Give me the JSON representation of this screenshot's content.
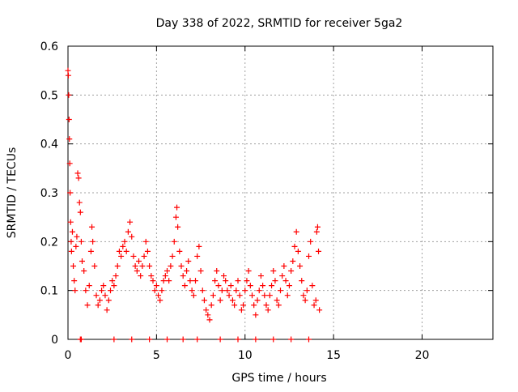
{
  "chart_data": {
    "type": "scatter",
    "title": "Day 338 of 2022, SRMTID for receiver 5ga2",
    "xlabel": "GPS time / hours",
    "ylabel": "SRMTID / TECUs",
    "xlim": [
      0,
      24
    ],
    "ylim": [
      0,
      0.6
    ],
    "x_ticks": [
      0,
      5,
      10,
      15,
      20
    ],
    "x_tick_labels": [
      "0",
      "5",
      "10",
      "15",
      "20"
    ],
    "y_ticks": [
      0,
      0.1,
      0.2,
      0.3,
      0.4,
      0.5,
      0.6
    ],
    "y_tick_labels": [
      "0",
      "0.1",
      "0.2",
      "0.3",
      "0.4",
      "0.5",
      "0.6"
    ],
    "grid": true,
    "marker": "plus",
    "marker_color": "#ff0000",
    "series": [
      {
        "name": "SRMTID",
        "points": [
          [
            0.0,
            0.55
          ],
          [
            0.02,
            0.54
          ],
          [
            0.04,
            0.5
          ],
          [
            0.06,
            0.45
          ],
          [
            0.08,
            0.41
          ],
          [
            0.1,
            0.36
          ],
          [
            0.12,
            0.3
          ],
          [
            0.15,
            0.24
          ],
          [
            0.18,
            0.2
          ],
          [
            0.2,
            0.18
          ],
          [
            0.25,
            0.22
          ],
          [
            0.3,
            0.15
          ],
          [
            0.35,
            0.12
          ],
          [
            0.4,
            0.1
          ],
          [
            0.45,
            0.19
          ],
          [
            0.5,
            0.21
          ],
          [
            0.55,
            0.34
          ],
          [
            0.6,
            0.33
          ],
          [
            0.65,
            0.28
          ],
          [
            0.7,
            0.26
          ],
          [
            0.75,
            0.2
          ],
          [
            0.8,
            0.16
          ],
          [
            0.9,
            0.14
          ],
          [
            1.0,
            0.1
          ],
          [
            1.1,
            0.07
          ],
          [
            1.2,
            0.11
          ],
          [
            1.3,
            0.18
          ],
          [
            1.35,
            0.23
          ],
          [
            1.4,
            0.2
          ],
          [
            1.5,
            0.15
          ],
          [
            1.6,
            0.09
          ],
          [
            1.7,
            0.07
          ],
          [
            1.8,
            0.08
          ],
          [
            1.9,
            0.1
          ],
          [
            2.0,
            0.11
          ],
          [
            2.1,
            0.09
          ],
          [
            2.2,
            0.06
          ],
          [
            2.3,
            0.08
          ],
          [
            2.4,
            0.1
          ],
          [
            2.5,
            0.12
          ],
          [
            2.6,
            0.11
          ],
          [
            2.7,
            0.13
          ],
          [
            2.8,
            0.15
          ],
          [
            2.9,
            0.18
          ],
          [
            3.0,
            0.17
          ],
          [
            3.1,
            0.19
          ],
          [
            3.2,
            0.2
          ],
          [
            3.3,
            0.18
          ],
          [
            3.4,
            0.22
          ],
          [
            3.5,
            0.24
          ],
          [
            3.6,
            0.21
          ],
          [
            3.7,
            0.17
          ],
          [
            3.8,
            0.15
          ],
          [
            3.9,
            0.14
          ],
          [
            4.0,
            0.16
          ],
          [
            4.1,
            0.13
          ],
          [
            4.2,
            0.15
          ],
          [
            4.3,
            0.17
          ],
          [
            4.4,
            0.2
          ],
          [
            4.5,
            0.18
          ],
          [
            4.6,
            0.15
          ],
          [
            4.7,
            0.13
          ],
          [
            4.8,
            0.12
          ],
          [
            4.9,
            0.1
          ],
          [
            5.0,
            0.11
          ],
          [
            5.1,
            0.09
          ],
          [
            5.2,
            0.08
          ],
          [
            5.3,
            0.1
          ],
          [
            5.4,
            0.12
          ],
          [
            5.5,
            0.13
          ],
          [
            5.6,
            0.14
          ],
          [
            5.7,
            0.12
          ],
          [
            5.8,
            0.15
          ],
          [
            5.9,
            0.17
          ],
          [
            6.0,
            0.2
          ],
          [
            6.1,
            0.25
          ],
          [
            6.15,
            0.27
          ],
          [
            6.2,
            0.23
          ],
          [
            6.3,
            0.18
          ],
          [
            6.4,
            0.15
          ],
          [
            6.5,
            0.13
          ],
          [
            6.6,
            0.11
          ],
          [
            6.7,
            0.14
          ],
          [
            6.8,
            0.16
          ],
          [
            6.9,
            0.12
          ],
          [
            7.0,
            0.1
          ],
          [
            7.1,
            0.09
          ],
          [
            7.2,
            0.12
          ],
          [
            7.3,
            0.17
          ],
          [
            7.4,
            0.19
          ],
          [
            7.5,
            0.14
          ],
          [
            7.6,
            0.1
          ],
          [
            7.7,
            0.08
          ],
          [
            7.8,
            0.06
          ],
          [
            7.9,
            0.05
          ],
          [
            8.0,
            0.04
          ],
          [
            8.1,
            0.07
          ],
          [
            8.2,
            0.09
          ],
          [
            8.3,
            0.12
          ],
          [
            8.4,
            0.14
          ],
          [
            8.5,
            0.11
          ],
          [
            8.6,
            0.08
          ],
          [
            8.7,
            0.1
          ],
          [
            8.8,
            0.13
          ],
          [
            8.9,
            0.12
          ],
          [
            9.0,
            0.1
          ],
          [
            9.1,
            0.09
          ],
          [
            9.2,
            0.11
          ],
          [
            9.3,
            0.08
          ],
          [
            9.4,
            0.07
          ],
          [
            9.5,
            0.1
          ],
          [
            9.6,
            0.12
          ],
          [
            9.7,
            0.09
          ],
          [
            9.8,
            0.06
          ],
          [
            9.9,
            0.07
          ],
          [
            10.0,
            0.1
          ],
          [
            10.1,
            0.12
          ],
          [
            10.2,
            0.14
          ],
          [
            10.3,
            0.11
          ],
          [
            10.4,
            0.09
          ],
          [
            10.5,
            0.07
          ],
          [
            10.6,
            0.05
          ],
          [
            10.7,
            0.08
          ],
          [
            10.8,
            0.1
          ],
          [
            10.9,
            0.13
          ],
          [
            11.0,
            0.11
          ],
          [
            11.1,
            0.09
          ],
          [
            11.2,
            0.07
          ],
          [
            11.3,
            0.06
          ],
          [
            11.4,
            0.09
          ],
          [
            11.5,
            0.11
          ],
          [
            11.6,
            0.14
          ],
          [
            11.7,
            0.12
          ],
          [
            11.8,
            0.08
          ],
          [
            11.9,
            0.07
          ],
          [
            12.0,
            0.1
          ],
          [
            12.1,
            0.13
          ],
          [
            12.2,
            0.15
          ],
          [
            12.3,
            0.12
          ],
          [
            12.4,
            0.09
          ],
          [
            12.5,
            0.11
          ],
          [
            12.6,
            0.14
          ],
          [
            12.7,
            0.16
          ],
          [
            12.8,
            0.19
          ],
          [
            12.9,
            0.22
          ],
          [
            13.0,
            0.18
          ],
          [
            13.1,
            0.15
          ],
          [
            13.2,
            0.12
          ],
          [
            13.3,
            0.09
          ],
          [
            13.4,
            0.08
          ],
          [
            13.5,
            0.1
          ],
          [
            13.6,
            0.17
          ],
          [
            13.7,
            0.2
          ],
          [
            13.8,
            0.11
          ],
          [
            13.9,
            0.07
          ],
          [
            14.0,
            0.08
          ],
          [
            14.05,
            0.22
          ],
          [
            14.1,
            0.23
          ],
          [
            14.15,
            0.18
          ],
          [
            14.2,
            0.06
          ],
          [
            0.7,
            0.0
          ],
          [
            0.75,
            0.0
          ],
          [
            2.6,
            0.0
          ],
          [
            3.6,
            0.0
          ],
          [
            4.6,
            0.0
          ],
          [
            5.6,
            0.0
          ],
          [
            6.5,
            0.0
          ],
          [
            7.3,
            0.0
          ],
          [
            8.6,
            0.0
          ],
          [
            9.6,
            0.0
          ],
          [
            10.6,
            0.0
          ],
          [
            11.6,
            0.0
          ],
          [
            12.6,
            0.0
          ],
          [
            13.6,
            0.0
          ]
        ]
      }
    ]
  }
}
